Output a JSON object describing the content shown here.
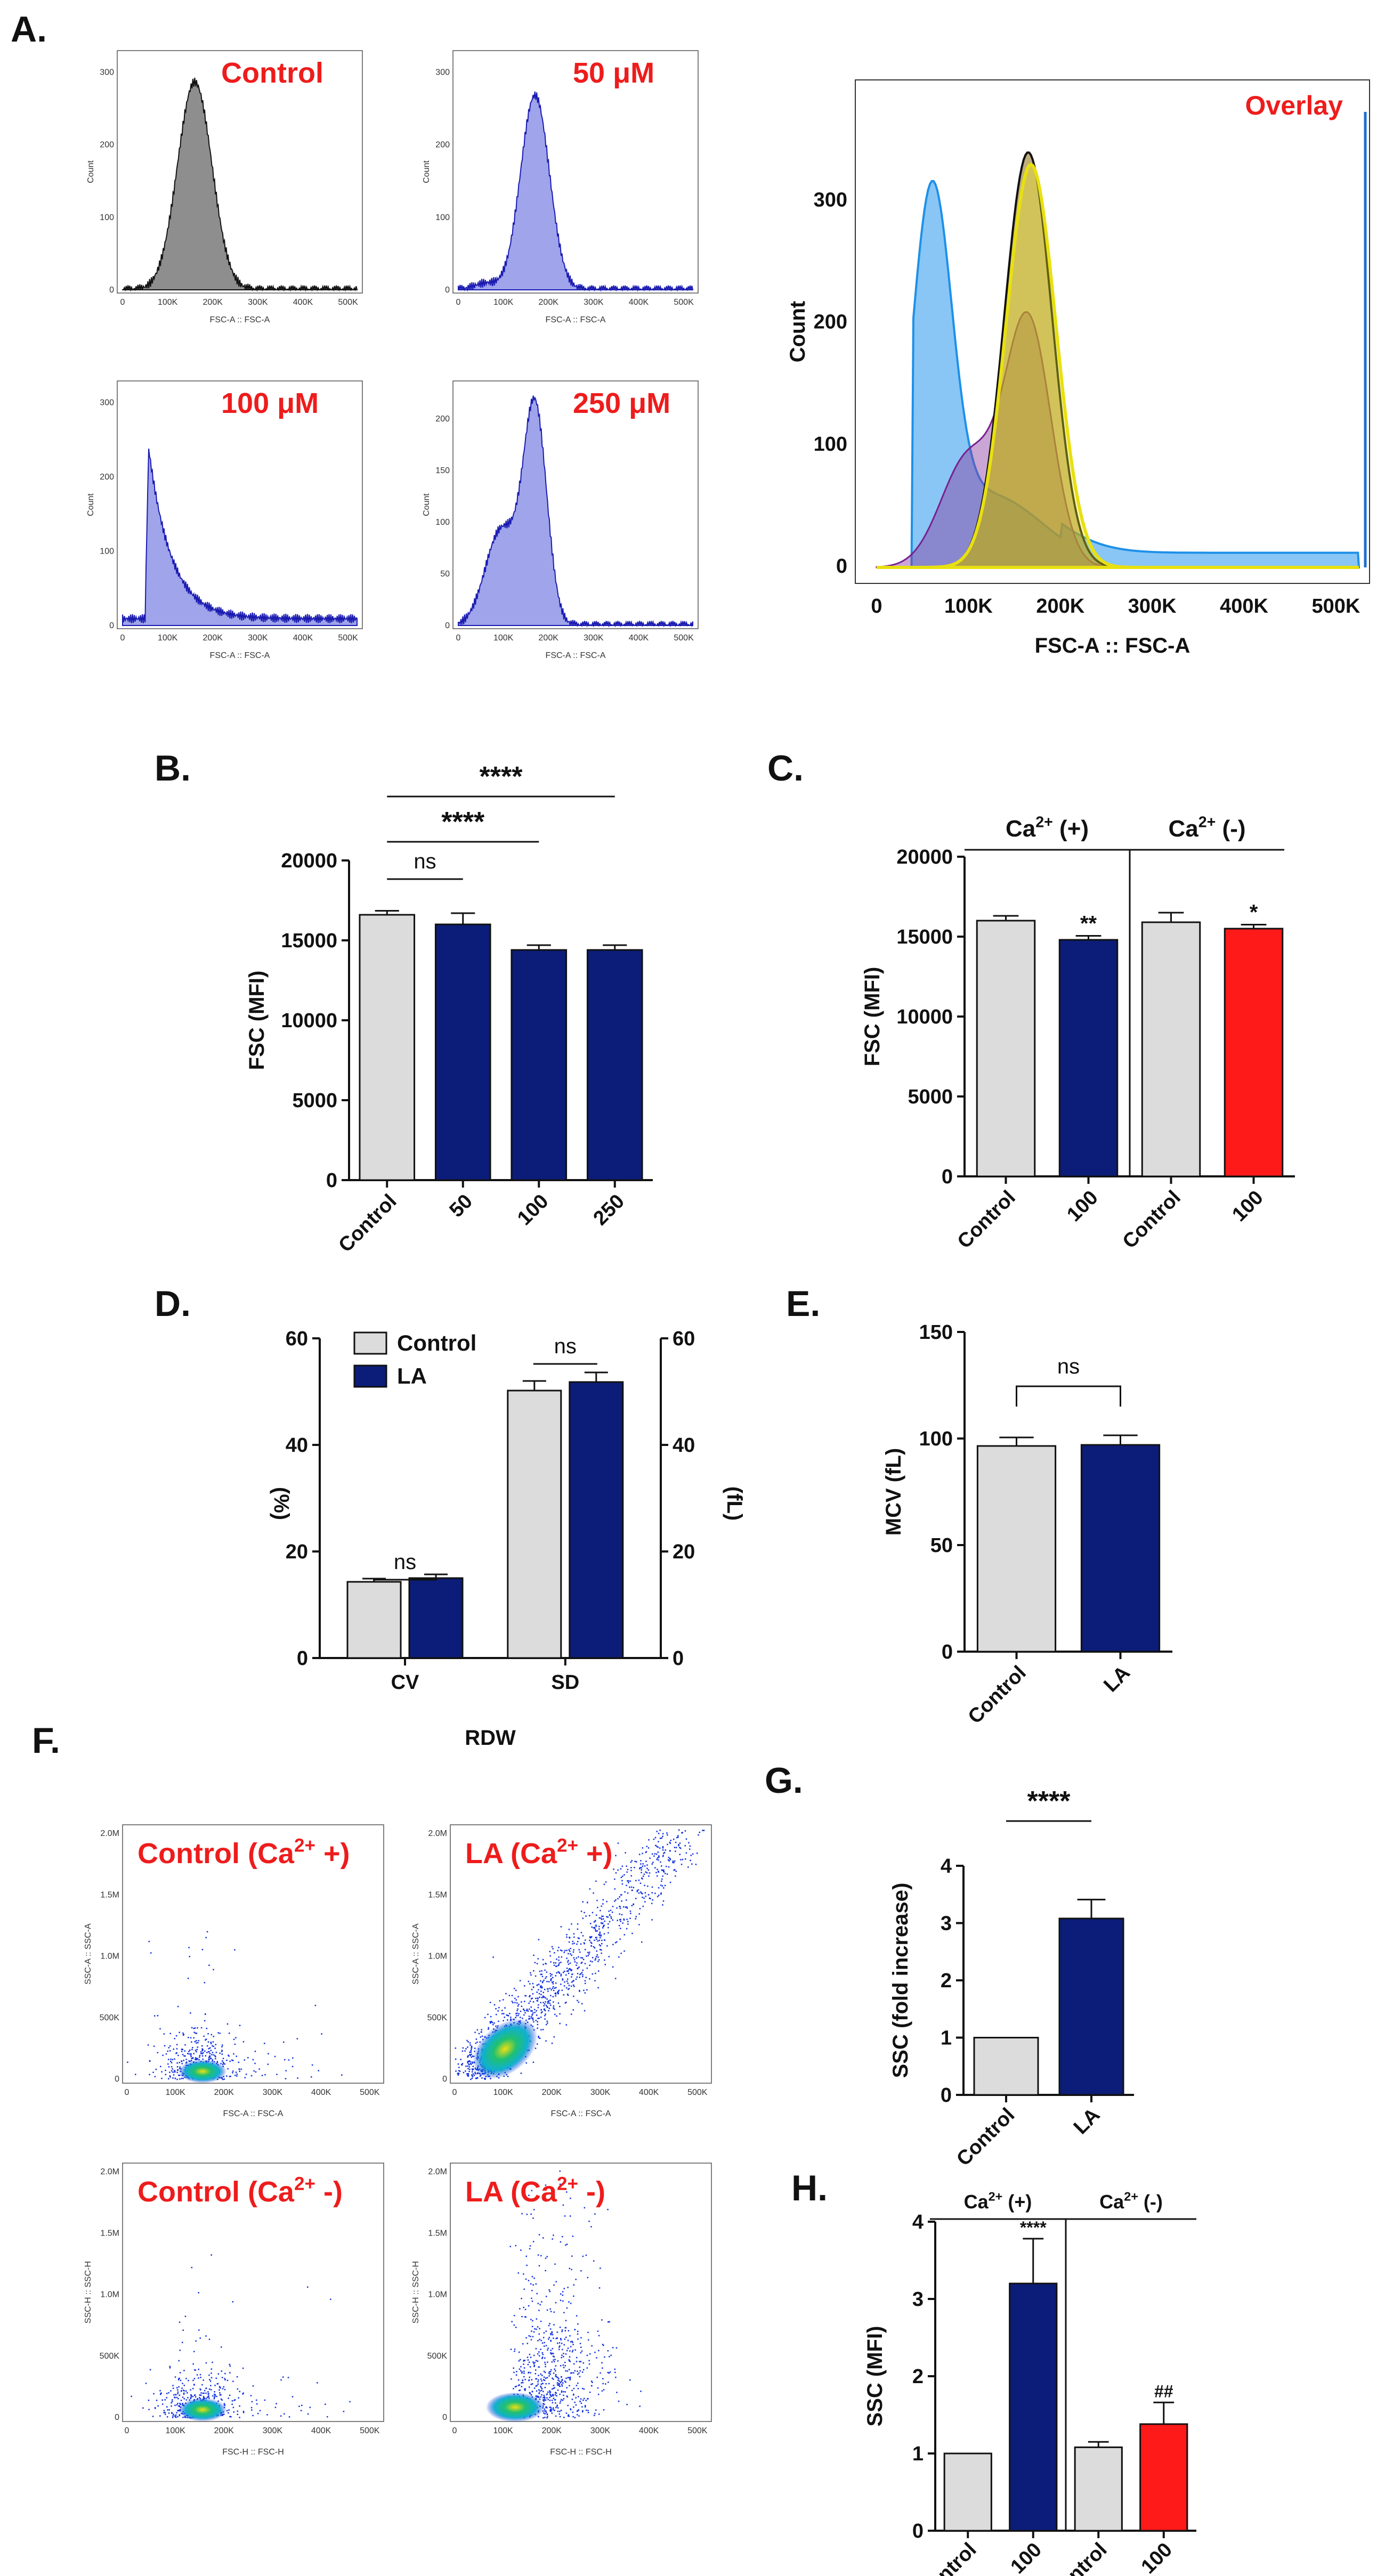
{
  "colors": {
    "control_fill": "#dcdcdc",
    "treated_fill": "#0b1d78",
    "red_fill": "#ff1a1a",
    "label_red": "#ee1c1c",
    "hist_blue": "#8e94e8",
    "hist_gray": "#7a7a7a",
    "overlay_lightblue": "#4aa8f0",
    "overlay_yellow": "#f3ee1c",
    "scatter_blue": "#1030e0"
  },
  "panels": {
    "A": {
      "letter": "A.",
      "hist_ticks_x": [
        "0",
        "100K",
        "200K",
        "300K",
        "400K",
        "500K"
      ],
      "hist_xlabel": "FSC-A :: FSC-A",
      "hist_ylabel": "Count",
      "hists": [
        {
          "label": "Control",
          "color": "hist_gray",
          "ticks_y": [
            "0",
            "100",
            "200",
            "300"
          ]
        },
        {
          "label": "50 μM",
          "color": "hist_blue",
          "ticks_y": [
            "0",
            "100",
            "200",
            "300"
          ]
        },
        {
          "label": "100 μM",
          "color": "hist_blue",
          "ticks_y": [
            "0",
            "100",
            "200",
            "300"
          ]
        },
        {
          "label": "250 μM",
          "color": "hist_blue",
          "ticks_y": [
            "0",
            "50",
            "100",
            "150",
            "200"
          ]
        }
      ],
      "overlay": {
        "label": "Overlay",
        "ticks_x": [
          "0",
          "100K",
          "200K",
          "300K",
          "400K",
          "500K"
        ],
        "ticks_y": [
          "0",
          "100",
          "200",
          "300"
        ],
        "xlabel": "FSC-A :: FSC-A",
        "ylabel": "Count"
      }
    },
    "B": {
      "letter": "B."
    },
    "C": {
      "letter": "C.",
      "group1": "Ca",
      "group1_sup": "2+",
      "group1_sign": " (+)",
      "group2": "Ca",
      "group2_sup": "2+",
      "group2_sign": " (-)"
    },
    "D": {
      "letter": "D.",
      "legend": [
        "Control",
        "LA"
      ],
      "xgroup": "RDW",
      "ylabel_left": "(%)",
      "ylabel_right": "(fL)"
    },
    "E": {
      "letter": "E."
    },
    "F": {
      "letter": "F.",
      "plots": [
        {
          "label_pre": "Control (Ca",
          "sup": "2+",
          "label_post": " +)",
          "xlabel": "FSC-A :: FSC-A",
          "ylabel": "SSC-A :: SSC-A"
        },
        {
          "label_pre": "LA (Ca",
          "sup": "2+",
          "label_post": " +)",
          "xlabel": "FSC-A :: FSC-A",
          "ylabel": "SSC-A :: SSC-A"
        },
        {
          "label_pre": "Control (Ca",
          "sup": "2+",
          "label_post": " -)",
          "xlabel": "FSC-H :: FSC-H",
          "ylabel": "SSC-H :: SSC-H"
        },
        {
          "label_pre": "LA (Ca",
          "sup": "2+",
          "label_post": " -)",
          "xlabel": "FSC-H :: FSC-H",
          "ylabel": "SSC-H :: SSC-H"
        }
      ],
      "ticks_x": [
        "0",
        "100K",
        "200K",
        "300K",
        "400K",
        "500K"
      ],
      "ticks_y": [
        "0",
        "500K",
        "1.0M",
        "1.5M",
        "2.0M"
      ]
    },
    "G": {
      "letter": "G."
    },
    "H": {
      "letter": "H.",
      "group1": "Ca",
      "group1_sup": "2+",
      "group1_sign": " (+)",
      "group2": "Ca",
      "group2_sup": "2+",
      "group2_sign": " (-)"
    }
  },
  "chart_data": [
    {
      "id": "B",
      "type": "bar",
      "title": "",
      "categories": [
        "Control",
        "50",
        "100",
        "250"
      ],
      "values": [
        16600,
        16000,
        14400,
        14400
      ],
      "errors": [
        250,
        700,
        300,
        300
      ],
      "ylabel": "FSC (MFI)",
      "ylim": [
        0,
        20000
      ],
      "yticks": [
        "0",
        "5000",
        "10000",
        "15000",
        "20000"
      ],
      "significance": [
        {
          "label": "ns",
          "from": 0,
          "to": 1
        },
        {
          "label": "****",
          "from": 0,
          "to": 2
        },
        {
          "label": "****",
          "from": 0,
          "to": 3
        }
      ]
    },
    {
      "id": "C",
      "type": "bar",
      "categories": [
        "Control",
        "100",
        "Control",
        "100"
      ],
      "values": [
        16000,
        14800,
        15900,
        15500
      ],
      "errors": [
        300,
        250,
        600,
        250
      ],
      "ylabel": "FSC (MFI)",
      "ylim": [
        0,
        20000
      ],
      "yticks": [
        "0",
        "5000",
        "10000",
        "15000",
        "20000"
      ],
      "annotations": [
        "",
        "**",
        "",
        "*"
      ]
    },
    {
      "id": "D",
      "type": "bar",
      "categories": [
        "CV",
        "SD"
      ],
      "series": [
        {
          "name": "Control",
          "values": [
            14.3,
            50.2
          ],
          "errors": [
            0.6,
            1.8
          ]
        },
        {
          "name": "LA",
          "values": [
            15.0,
            51.8
          ],
          "errors": [
            0.7,
            1.8
          ]
        }
      ],
      "ylabel": "(%)",
      "ylabel_right": "(fL)",
      "xlabel": "RDW",
      "ylim": [
        0,
        60
      ],
      "yticks": [
        "0",
        "20",
        "40",
        "60"
      ],
      "significance": [
        {
          "label": "ns",
          "group": "CV"
        },
        {
          "label": "ns",
          "group": "SD"
        }
      ]
    },
    {
      "id": "E",
      "type": "bar",
      "categories": [
        "Control",
        "LA"
      ],
      "values": [
        96.5,
        97.0
      ],
      "errors": [
        4.0,
        4.5
      ],
      "ylabel": "MCV (fL)",
      "ylim": [
        0,
        150
      ],
      "yticks": [
        "0",
        "50",
        "100",
        "150"
      ],
      "significance": [
        {
          "label": "ns",
          "from": 0,
          "to": 1
        }
      ]
    },
    {
      "id": "G",
      "type": "bar",
      "categories": [
        "Control",
        "LA"
      ],
      "values": [
        1.0,
        3.08
      ],
      "errors": [
        0,
        0.33
      ],
      "ylabel": "SSC (fold increase)",
      "ylim": [
        0,
        4
      ],
      "yticks": [
        "0",
        "1",
        "2",
        "3",
        "4"
      ],
      "significance": [
        {
          "label": "****",
          "from": 0,
          "to": 1
        }
      ]
    },
    {
      "id": "H",
      "type": "bar",
      "categories": [
        "Control",
        "100",
        "Control",
        "100"
      ],
      "values": [
        1.0,
        3.2,
        1.08,
        1.38
      ],
      "errors": [
        0,
        0.58,
        0.07,
        0.28
      ],
      "ylabel": "SSC (MFI)",
      "ylim": [
        0,
        4
      ],
      "yticks": [
        "0",
        "1",
        "2",
        "3",
        "4"
      ],
      "annotations": [
        "",
        "****",
        "",
        "##"
      ]
    }
  ]
}
